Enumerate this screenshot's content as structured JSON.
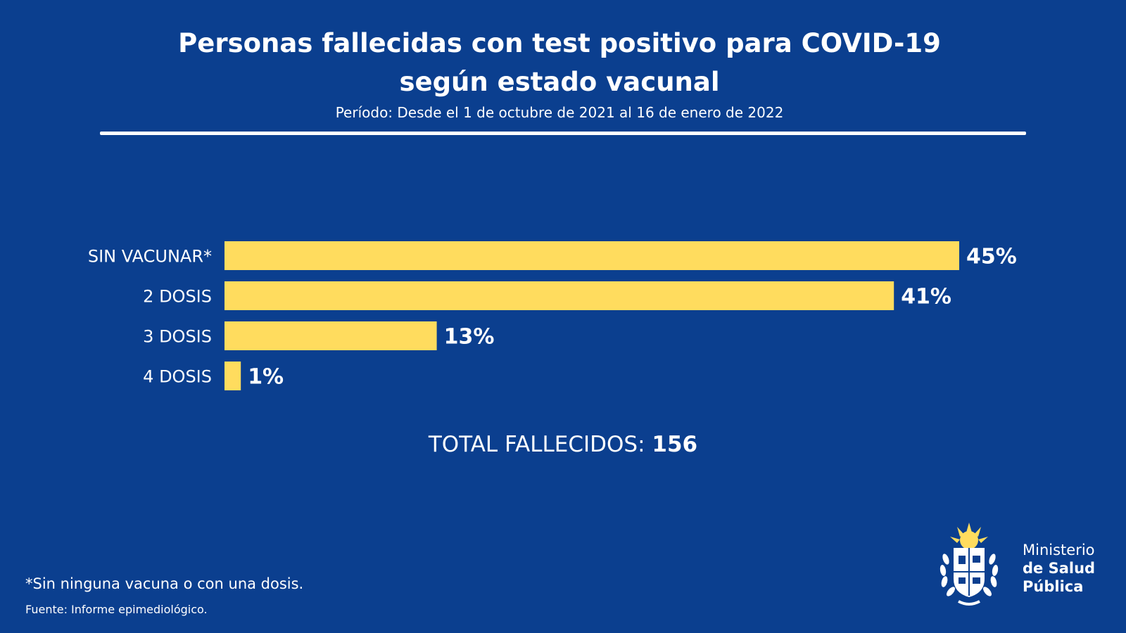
{
  "header": {
    "title_line1": "Personas fallecidas con test positivo para COVID-19",
    "title_line2": "según estado vacunal",
    "subtitle": "Período: Desde el 1 de octubre de 2021 al 16 de enero de 2022"
  },
  "colors": {
    "background": "#0b3f8f",
    "bar": "#ffdc5e",
    "text": "#ffffff"
  },
  "chart_data": {
    "type": "bar",
    "orientation": "horizontal",
    "categories": [
      "SIN VACUNAR*",
      "2 DOSIS",
      "3 DOSIS",
      "4 DOSIS"
    ],
    "values": [
      45,
      41,
      13,
      1
    ],
    "value_labels": [
      "45%",
      "41%",
      "13%",
      "1%"
    ],
    "unit": "%",
    "xlim": [
      0,
      45
    ],
    "grid": false,
    "legend": "none"
  },
  "total": {
    "label": "TOTAL FALLECIDOS:",
    "value": "156"
  },
  "footnote": "*Sin ninguna vacuna o con una dosis.",
  "source": "Fuente: Informe epimediológico.",
  "logo": {
    "icon": "coat-of-arms-icon",
    "line1": "Ministerio",
    "line2": "de Salud",
    "line3": "Pública"
  }
}
